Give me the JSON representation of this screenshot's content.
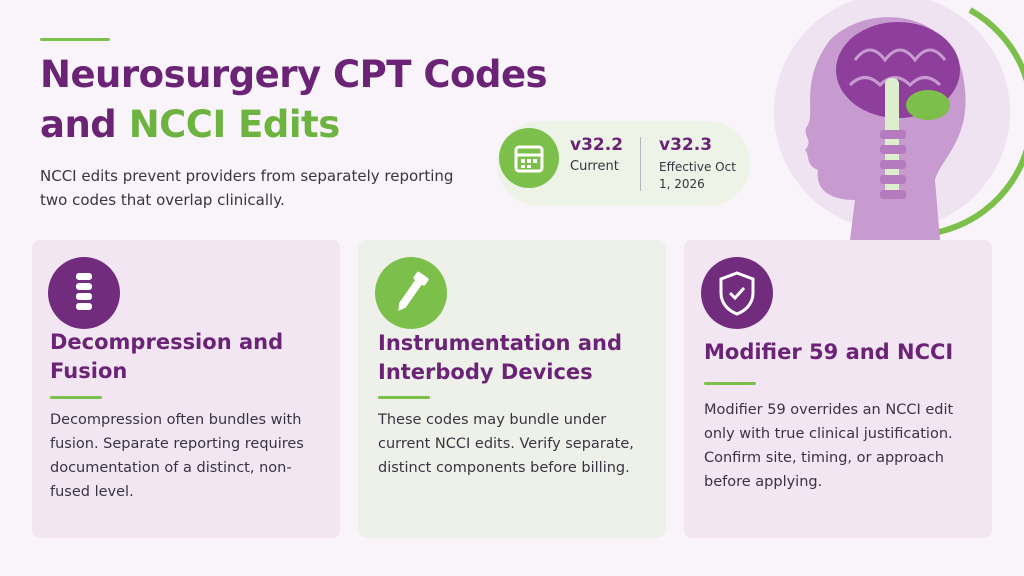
{
  "header": {
    "title_line1": "Neurosurgery CPT Codes",
    "title_line2_prefix": "and",
    "title_highlight": "NCCI Edits",
    "subtitle": "NCCI edits prevent providers from separately reporting two codes that overlap clinically."
  },
  "versions": [
    {
      "version": "v32.2",
      "status": "Current"
    },
    {
      "version": "v32.3",
      "status": "Effective Oct 1, 2026"
    }
  ],
  "cards": [
    {
      "title": "Decompression and Fusion",
      "body": "Decompression often bundles with fusion. Separate reporting requires documentation of a distinct, non-fused level."
    },
    {
      "title": "Instrumentation and Interbody Devices",
      "body": "These codes may bundle under current NCCI edits. Verify separate, distinct components before billing."
    },
    {
      "title": "Modifier 59 and NCCI",
      "body": "Modifier 59 overrides an NCCI edit only with true clinical justification. Confirm site, timing, or approach before applying."
    }
  ]
}
